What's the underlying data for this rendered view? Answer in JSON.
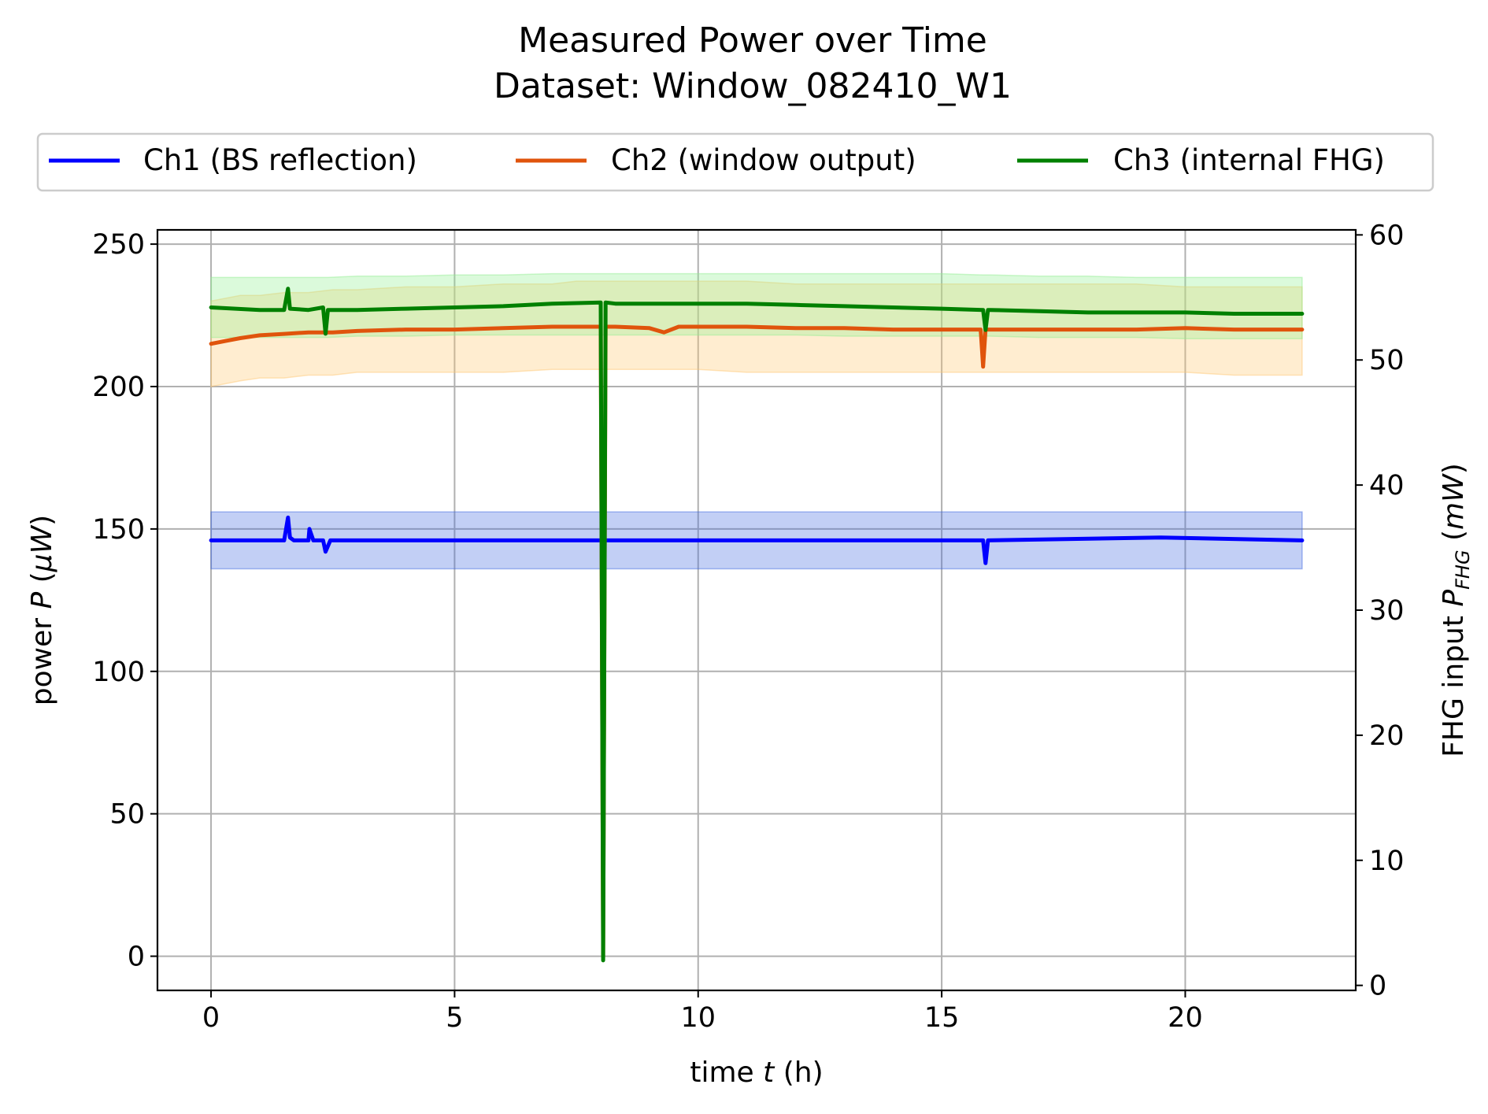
{
  "chart_data": {
    "type": "line",
    "title_line1": "Measured Power over Time",
    "title_line2": "Dataset: Window_082410_W1",
    "xlabel_pre": "time ",
    "xlabel_var": "t",
    "xlabel_post": " (h)",
    "ylabel_pre": "power ",
    "ylabel_var": "P",
    "ylabel_unit_open": " (",
    "ylabel_unit": "μW",
    "ylabel_unit_close": ")",
    "y2label_pre": "FHG input ",
    "y2label_var": "P",
    "y2label_sub": "FHG",
    "y2label_unit_open": " (",
    "y2label_unit": "mW",
    "y2label_unit_close": ")",
    "xlim": [
      -1.1,
      23.5
    ],
    "ylim": [
      -12,
      255
    ],
    "y2lim": [
      -0.4,
      60.4
    ],
    "xticks": [
      0,
      5,
      10,
      15,
      20
    ],
    "yticks": [
      0,
      50,
      100,
      150,
      200,
      250
    ],
    "y2ticks": [
      0,
      10,
      20,
      30,
      40,
      50,
      60
    ],
    "grid": true,
    "legend_position": "top, above plot",
    "series": [
      {
        "name": "Ch1 (BS reflection)",
        "axis": "left",
        "color": "#0000ff",
        "band_color": "#4169e1",
        "x": [
          0,
          1.5,
          1.58,
          1.62,
          1.7,
          2.0,
          2.02,
          2.1,
          2.3,
          2.35,
          2.45,
          2.7,
          8.1,
          15.85,
          15.9,
          15.95,
          19.5,
          22.4
        ],
        "y": [
          146,
          146,
          154,
          147,
          146,
          146,
          150,
          146,
          146,
          142,
          146,
          146,
          146,
          146,
          138,
          146,
          147,
          146
        ],
        "band_upper": [
          156,
          156,
          156,
          156,
          156,
          156,
          156,
          156,
          156,
          156,
          156,
          156,
          156,
          156,
          156,
          156,
          156,
          156
        ],
        "band_lower": [
          136,
          136,
          136,
          136,
          136,
          136,
          136,
          136,
          136,
          136,
          136,
          136,
          136,
          136,
          136,
          136,
          136,
          136
        ]
      },
      {
        "name": "Ch2 (window output)",
        "axis": "left",
        "color": "#e0540c",
        "band_color": "#ffc66e",
        "x": [
          0,
          0.3,
          0.6,
          1.0,
          1.5,
          2.0,
          2.5,
          3.0,
          4.0,
          5.0,
          6.0,
          7.0,
          7.5,
          8.0,
          8.05,
          8.1,
          8.3,
          9.0,
          9.3,
          9.6,
          10.0,
          11.0,
          12.0,
          13.0,
          14.0,
          15.0,
          15.8,
          15.85,
          15.9,
          16.0,
          17.0,
          18.0,
          19.0,
          20.0,
          21.0,
          22.4
        ],
        "y": [
          215,
          216,
          217,
          218,
          218.5,
          219,
          219,
          219.5,
          220,
          220,
          220.5,
          221,
          221,
          221,
          0,
          221,
          221,
          220.5,
          219,
          221,
          221,
          221,
          220.5,
          220.5,
          220,
          220,
          220,
          207,
          220,
          220,
          220,
          220,
          220,
          220.5,
          220,
          220
        ],
        "band_upper": [
          230,
          231,
          232,
          232,
          233,
          233,
          234,
          234,
          235,
          235,
          236,
          236,
          237,
          237,
          237,
          237,
          237,
          237,
          237,
          237,
          237,
          237,
          236,
          236,
          236,
          236,
          236,
          236,
          236,
          236,
          236,
          236,
          236,
          235,
          235,
          235
        ],
        "band_lower": [
          200,
          201,
          202,
          203,
          203,
          204,
          204,
          205,
          205,
          205,
          205,
          206,
          206,
          206,
          206,
          206,
          206,
          206,
          206,
          206,
          206,
          205,
          205,
          205,
          205,
          205,
          205,
          205,
          205,
          205,
          205,
          205,
          205,
          205,
          204,
          204
        ]
      },
      {
        "name": "Ch3 (internal FHG)",
        "axis": "right",
        "color": "#008000",
        "band_color": "#90ee90",
        "x": [
          0,
          0.5,
          1.0,
          1.5,
          1.58,
          1.62,
          2.0,
          2.3,
          2.35,
          2.4,
          3.0,
          4.0,
          5.0,
          6.0,
          7.0,
          8.0,
          8.05,
          8.1,
          8.3,
          9.0,
          10.0,
          11.0,
          12.0,
          13.0,
          14.0,
          15.0,
          15.85,
          15.9,
          15.95,
          16.0,
          17.0,
          18.0,
          19.0,
          20.0,
          21.0,
          22.4
        ],
        "y": [
          54.2,
          54.1,
          54.0,
          54.0,
          55.7,
          54.1,
          54.0,
          54.2,
          52.1,
          54.0,
          54.0,
          54.1,
          54.2,
          54.3,
          54.5,
          54.6,
          2.0,
          54.6,
          54.5,
          54.5,
          54.5,
          54.5,
          54.4,
          54.3,
          54.2,
          54.1,
          54.0,
          52.4,
          54.0,
          54.0,
          53.9,
          53.8,
          53.8,
          53.8,
          53.7,
          53.7
        ],
        "band_upper": [
          56.6,
          56.6,
          56.6,
          56.6,
          56.6,
          56.6,
          56.6,
          56.6,
          56.6,
          56.6,
          56.7,
          56.7,
          56.8,
          56.8,
          56.9,
          56.9,
          56.9,
          56.9,
          56.9,
          56.9,
          56.9,
          56.9,
          56.9,
          56.9,
          56.9,
          56.9,
          56.8,
          56.8,
          56.8,
          56.8,
          56.7,
          56.7,
          56.6,
          56.6,
          56.6,
          56.6
        ],
        "band_lower": [
          51.8,
          51.8,
          51.8,
          51.8,
          51.8,
          51.8,
          51.8,
          51.8,
          51.8,
          51.8,
          51.9,
          51.9,
          52.0,
          52.0,
          52.0,
          52.0,
          52.0,
          52.0,
          52.0,
          52.0,
          52.0,
          52.0,
          52.0,
          51.9,
          51.9,
          51.9,
          51.9,
          51.9,
          51.9,
          51.9,
          51.8,
          51.8,
          51.8,
          51.7,
          51.7,
          51.7
        ]
      }
    ]
  }
}
